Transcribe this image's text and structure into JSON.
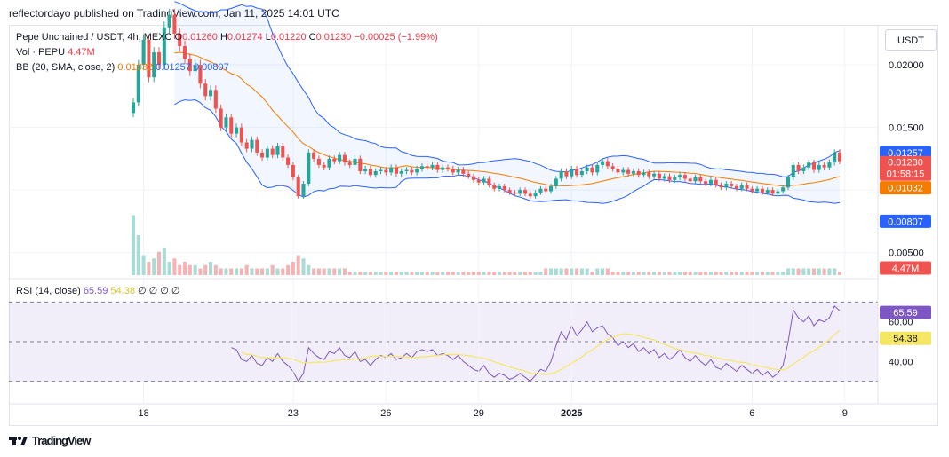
{
  "header": {
    "published": "reflectordayo published on TradingView.com, Jan 11, 2025 14:01 UTC"
  },
  "legend": {
    "symbol": "Pepe Unchained / USDT, 4h, MEXC",
    "o_label": "O",
    "o": "0.01260",
    "h_label": "H",
    "h": "0.01274",
    "l_label": "L",
    "l": "0.01220",
    "c_label": "C",
    "c": "0.01230",
    "change": "−0.00025 (−1.99%)",
    "vol_label": "Vol · PEPU",
    "vol": "4.47M",
    "bb_label": "BB (20, SMA, close, 2)",
    "bb_basis": "0.01032",
    "bb_upper": "0.01257",
    "bb_lower": "0.00807",
    "rsi_label": "RSI (14, close)",
    "rsi": "65.59",
    "rsi_ma": "54.38",
    "rsi_extra": "∅ ∅ ∅ ∅"
  },
  "currency_button": "USDT",
  "price_axis": {
    "ticks": [
      "0.02000",
      "0.01500",
      "0.00500"
    ]
  },
  "price_badges": {
    "upper": "0.01257",
    "last": "0.01230",
    "countdown": "01:58:15",
    "basis": "0.01032",
    "lower": "0.00807",
    "volume": "4.47M"
  },
  "rsi_axis": {
    "ticks": [
      "60.00",
      "40.00"
    ],
    "value_badge": "65.59",
    "ma_badge": "54.38"
  },
  "time_axis": {
    "ticks": [
      "18",
      "23",
      "26",
      "29",
      "2025",
      "6",
      "9"
    ]
  },
  "colors": {
    "up": "#26a69a",
    "down": "#ef5350",
    "bb": "#2962ff",
    "basis": "#f57c00",
    "rsi": "#7e57c2",
    "rsi_ma": "#f5e663",
    "vol_up": "#a8dcd6",
    "vol_down": "#f5b4b3"
  },
  "footer": {
    "brand": "TradingView",
    "logo_icon": "tradingview-logo-icon"
  },
  "chart_data": {
    "type": "candlestick",
    "title": "Pepe Unchained / USDT, 4h, MEXC",
    "price_range": [
      0.0032,
      0.0232
    ],
    "rsi_range": [
      20,
      80
    ],
    "rsi_levels": [
      70,
      50,
      30
    ],
    "x_ticks": [
      {
        "label": "18",
        "index": 2
      },
      {
        "label": "23",
        "index": 31
      },
      {
        "label": "26",
        "index": 49
      },
      {
        "label": "29",
        "index": 67
      },
      {
        "label": "2025",
        "index": 85
      },
      {
        "label": "6",
        "index": 120
      },
      {
        "label": "9",
        "index": 138
      }
    ],
    "close": [
      0.017,
      0.02,
      0.022,
      0.019,
      0.021,
      0.02,
      0.023,
      0.024,
      0.0225,
      0.0215,
      0.0205,
      0.0195,
      0.02,
      0.0185,
      0.0175,
      0.018,
      0.0165,
      0.015,
      0.0158,
      0.0145,
      0.015,
      0.0138,
      0.0133,
      0.014,
      0.013,
      0.0126,
      0.0133,
      0.0128,
      0.0135,
      0.0126,
      0.012,
      0.011,
      0.0095,
      0.0105,
      0.013,
      0.0125,
      0.012,
      0.0118,
      0.0125,
      0.0123,
      0.0128,
      0.0122,
      0.012,
      0.0125,
      0.0115,
      0.0117,
      0.0112,
      0.0115,
      0.0116,
      0.0114,
      0.0118,
      0.0113,
      0.0115,
      0.0116,
      0.0114,
      0.0117,
      0.0119,
      0.0118,
      0.012,
      0.0116,
      0.0118,
      0.0117,
      0.0114,
      0.0116,
      0.0113,
      0.0111,
      0.0108,
      0.0106,
      0.0109,
      0.0104,
      0.0101,
      0.0103,
      0.01,
      0.0098,
      0.0097,
      0.01,
      0.0097,
      0.0095,
      0.0098,
      0.0101,
      0.0099,
      0.0103,
      0.0109,
      0.0115,
      0.0111,
      0.0117,
      0.0112,
      0.0115,
      0.0118,
      0.0114,
      0.012,
      0.0123,
      0.0119,
      0.0117,
      0.0114,
      0.0116,
      0.0113,
      0.0115,
      0.0112,
      0.0114,
      0.0111,
      0.0113,
      0.0109,
      0.0111,
      0.0108,
      0.011,
      0.0112,
      0.0109,
      0.0107,
      0.011,
      0.0107,
      0.0105,
      0.0108,
      0.0104,
      0.0102,
      0.0105,
      0.0103,
      0.0101,
      0.0104,
      0.0101,
      0.0099,
      0.0101,
      0.0098,
      0.01,
      0.0097,
      0.0099,
      0.0102,
      0.011,
      0.012,
      0.0115,
      0.0118,
      0.0122,
      0.0116,
      0.012,
      0.0118,
      0.0122,
      0.013,
      0.0123
    ],
    "volume": [
      18,
      12,
      6,
      4,
      5,
      7,
      8,
      4,
      5,
      3,
      4,
      3,
      3,
      2,
      3,
      4,
      3,
      2,
      2,
      2,
      2,
      2,
      3,
      2,
      2,
      2,
      2,
      3,
      2,
      2,
      3,
      4,
      6,
      5,
      3,
      2,
      2,
      2,
      2,
      2,
      2,
      2,
      1,
      1,
      1,
      1,
      1,
      1,
      1,
      1,
      1,
      1,
      1,
      1,
      1,
      1,
      1,
      1,
      1,
      1,
      1,
      1,
      1,
      1,
      1,
      1,
      1,
      1,
      1,
      1,
      1,
      1,
      1,
      1,
      1,
      1,
      1,
      1,
      1,
      1,
      2,
      2,
      2,
      2,
      2,
      2,
      2,
      2,
      2,
      1,
      2,
      2,
      2,
      1,
      1,
      1,
      1,
      1,
      1,
      1,
      1,
      1,
      1,
      1,
      1,
      1,
      1,
      1,
      1,
      1,
      1,
      1,
      1,
      1,
      1,
      1,
      1,
      1,
      1,
      1,
      1,
      1,
      1,
      1,
      1,
      1,
      1,
      2,
      2,
      2,
      2,
      2,
      2,
      2,
      2,
      2,
      2,
      1
    ],
    "volume_max": 20,
    "rsi": [
      null,
      null,
      null,
      null,
      null,
      null,
      null,
      null,
      null,
      null,
      null,
      null,
      null,
      null,
      null,
      null,
      null,
      null,
      null,
      47.0,
      46.0,
      41.0,
      40.0,
      43.0,
      39.0,
      38.0,
      42.0,
      40.0,
      44.0,
      40.0,
      38.0,
      35.0,
      30.0,
      34.0,
      47.0,
      44.0,
      42.0,
      41.0,
      45.0,
      44.0,
      47.0,
      43.0,
      42.0,
      45.0,
      40.0,
      41.0,
      38.0,
      41.0,
      43.0,
      42.0,
      44.0,
      41.0,
      42.0,
      44.0,
      42.0,
      45.0,
      46.0,
      45.0,
      46.0,
      43.0,
      44.0,
      43.0,
      41.0,
      43.0,
      40.0,
      38.0,
      36.0,
      35.0,
      38.0,
      34.0,
      32.0,
      34.0,
      33.0,
      31.0,
      32.0,
      34.0,
      32.0,
      30.0,
      33.0,
      36.0,
      35.0,
      40.0,
      48.0,
      55.0,
      51.0,
      58.0,
      53.0,
      56.0,
      60.0,
      55.0,
      57.0,
      58.0,
      54.0,
      52.0,
      48.0,
      50.0,
      47.0,
      49.0,
      45.0,
      47.0,
      44.0,
      46.0,
      42.0,
      44.0,
      41.0,
      43.0,
      46.0,
      42.0,
      40.0,
      43.0,
      40.0,
      38.0,
      41.0,
      37.0,
      36.0,
      39.0,
      37.0,
      35.0,
      38.0,
      36.0,
      34.0,
      36.0,
      33.0,
      35.0,
      32.0,
      34.0,
      38.0,
      50.0,
      66.0,
      62.0,
      60.0,
      63.0,
      58.0,
      61.0,
      60.0,
      62.0,
      68.0,
      65.59
    ],
    "rsi_last": 65.59,
    "rsi_ma_last": 54.38
  }
}
